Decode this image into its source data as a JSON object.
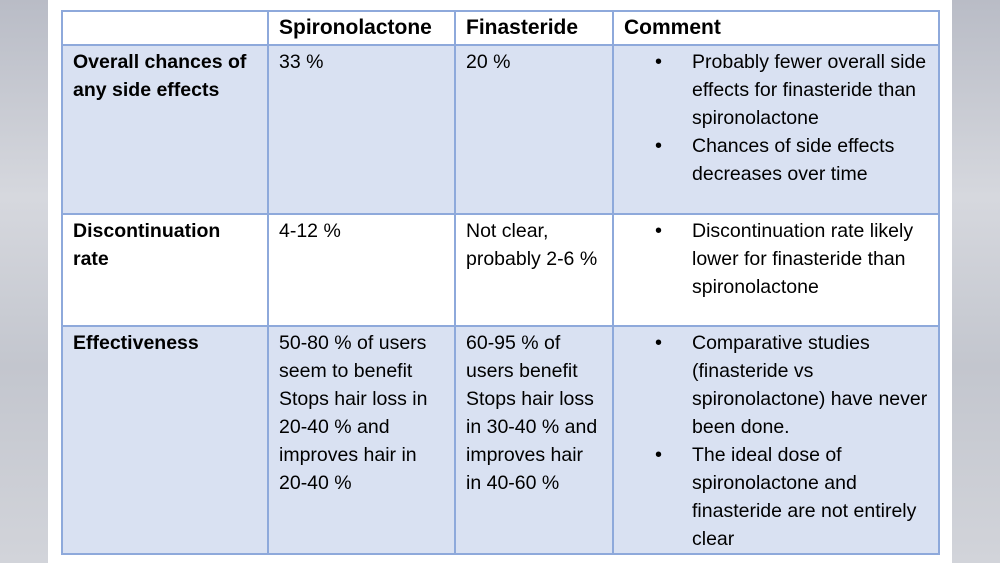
{
  "table": {
    "headers": [
      "",
      "Spironolactone",
      "Finasteride",
      "Comment"
    ],
    "rows": [
      {
        "label": "Overall chances of any side effects",
        "spironolactone": "33 %",
        "finasteride": "20 %",
        "comments": [
          "Probably fewer overall side effects for finasteride than spironolactone",
          "Chances of side effects decreases over time"
        ]
      },
      {
        "label": "Discontinuation rate",
        "spironolactone": "4-12 %",
        "finasteride": "Not clear, probably 2-6 %",
        "comments": [
          "Discontinuation rate likely lower for finasteride than spironolactone"
        ]
      },
      {
        "label": "Effectiveness",
        "spironolactone_lines": [
          "50-80 % of users seem to benefit",
          "Stops hair loss in 20-40 % and improves hair in 20-40 %"
        ],
        "finasteride_lines": [
          "60-95 % of users benefit",
          "Stops hair loss in 30-40 % and improves hair in 40-60 %"
        ],
        "comments": [
          "Comparative studies (finasteride vs spironolactone) have never been done.",
          "The ideal dose of spironolactone and finasteride are not entirely clear"
        ]
      }
    ]
  }
}
